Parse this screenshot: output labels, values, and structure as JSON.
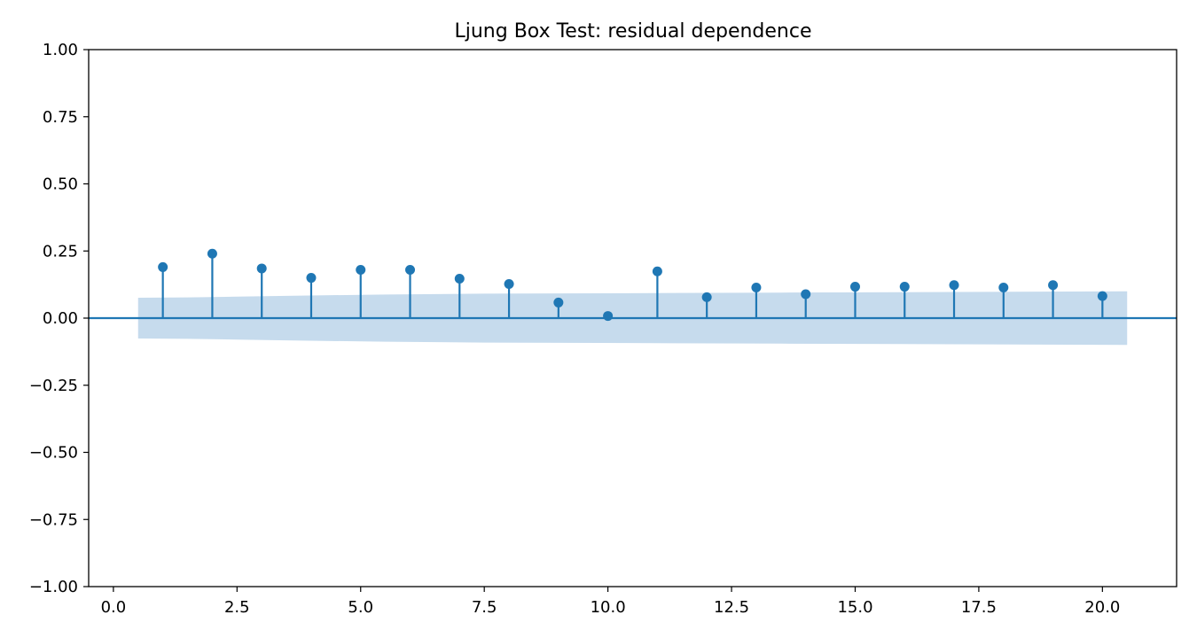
{
  "chart_data": {
    "type": "stem",
    "title": "Ljung Box Test: residual dependence",
    "xlabel": "",
    "ylabel": "",
    "xlim": [
      -0.5,
      21.5
    ],
    "ylim": [
      -1.0,
      1.0
    ],
    "grid": false,
    "legend": "none",
    "x_ticks": [
      "0.0",
      "2.5",
      "5.0",
      "7.5",
      "10.0",
      "12.5",
      "15.0",
      "17.5",
      "20.0"
    ],
    "x_tick_values": [
      0,
      2.5,
      5,
      7.5,
      10,
      12.5,
      15,
      17.5,
      20
    ],
    "y_ticks": [
      "1.00",
      "0.75",
      "0.50",
      "0.25",
      "0.00",
      "−0.25",
      "−0.50",
      "−0.75",
      "−1.00"
    ],
    "y_tick_values": [
      1.0,
      0.75,
      0.5,
      0.25,
      0.0,
      -0.25,
      -0.5,
      -0.75,
      -1.0
    ],
    "series": [
      {
        "x": [
          1,
          2,
          3,
          4,
          5,
          6,
          7,
          8,
          9,
          10,
          11,
          12,
          13,
          14,
          15,
          16,
          17,
          18,
          19,
          20
        ],
        "values": [
          0.19,
          0.24,
          0.185,
          0.15,
          0.18,
          0.18,
          0.147,
          0.127,
          0.058,
          0.008,
          0.174,
          0.078,
          0.114,
          0.089,
          0.117,
          0.117,
          0.123,
          0.114,
          0.123,
          0.082
        ]
      }
    ],
    "confidence_band": {
      "x": [
        0.5,
        1.5,
        2.5,
        3.5,
        5.5,
        7.5,
        10.5,
        13.5,
        16.5,
        20.5
      ],
      "upper": [
        0.076,
        0.077,
        0.08,
        0.083,
        0.088,
        0.091,
        0.093,
        0.095,
        0.097,
        0.1
      ],
      "lower": [
        -0.076,
        -0.077,
        -0.08,
        -0.083,
        -0.088,
        -0.091,
        -0.093,
        -0.095,
        -0.097,
        -0.1
      ]
    },
    "colors": {
      "stem": "#1f77b4",
      "band": "#c6dbed",
      "axes": "#000000"
    }
  }
}
